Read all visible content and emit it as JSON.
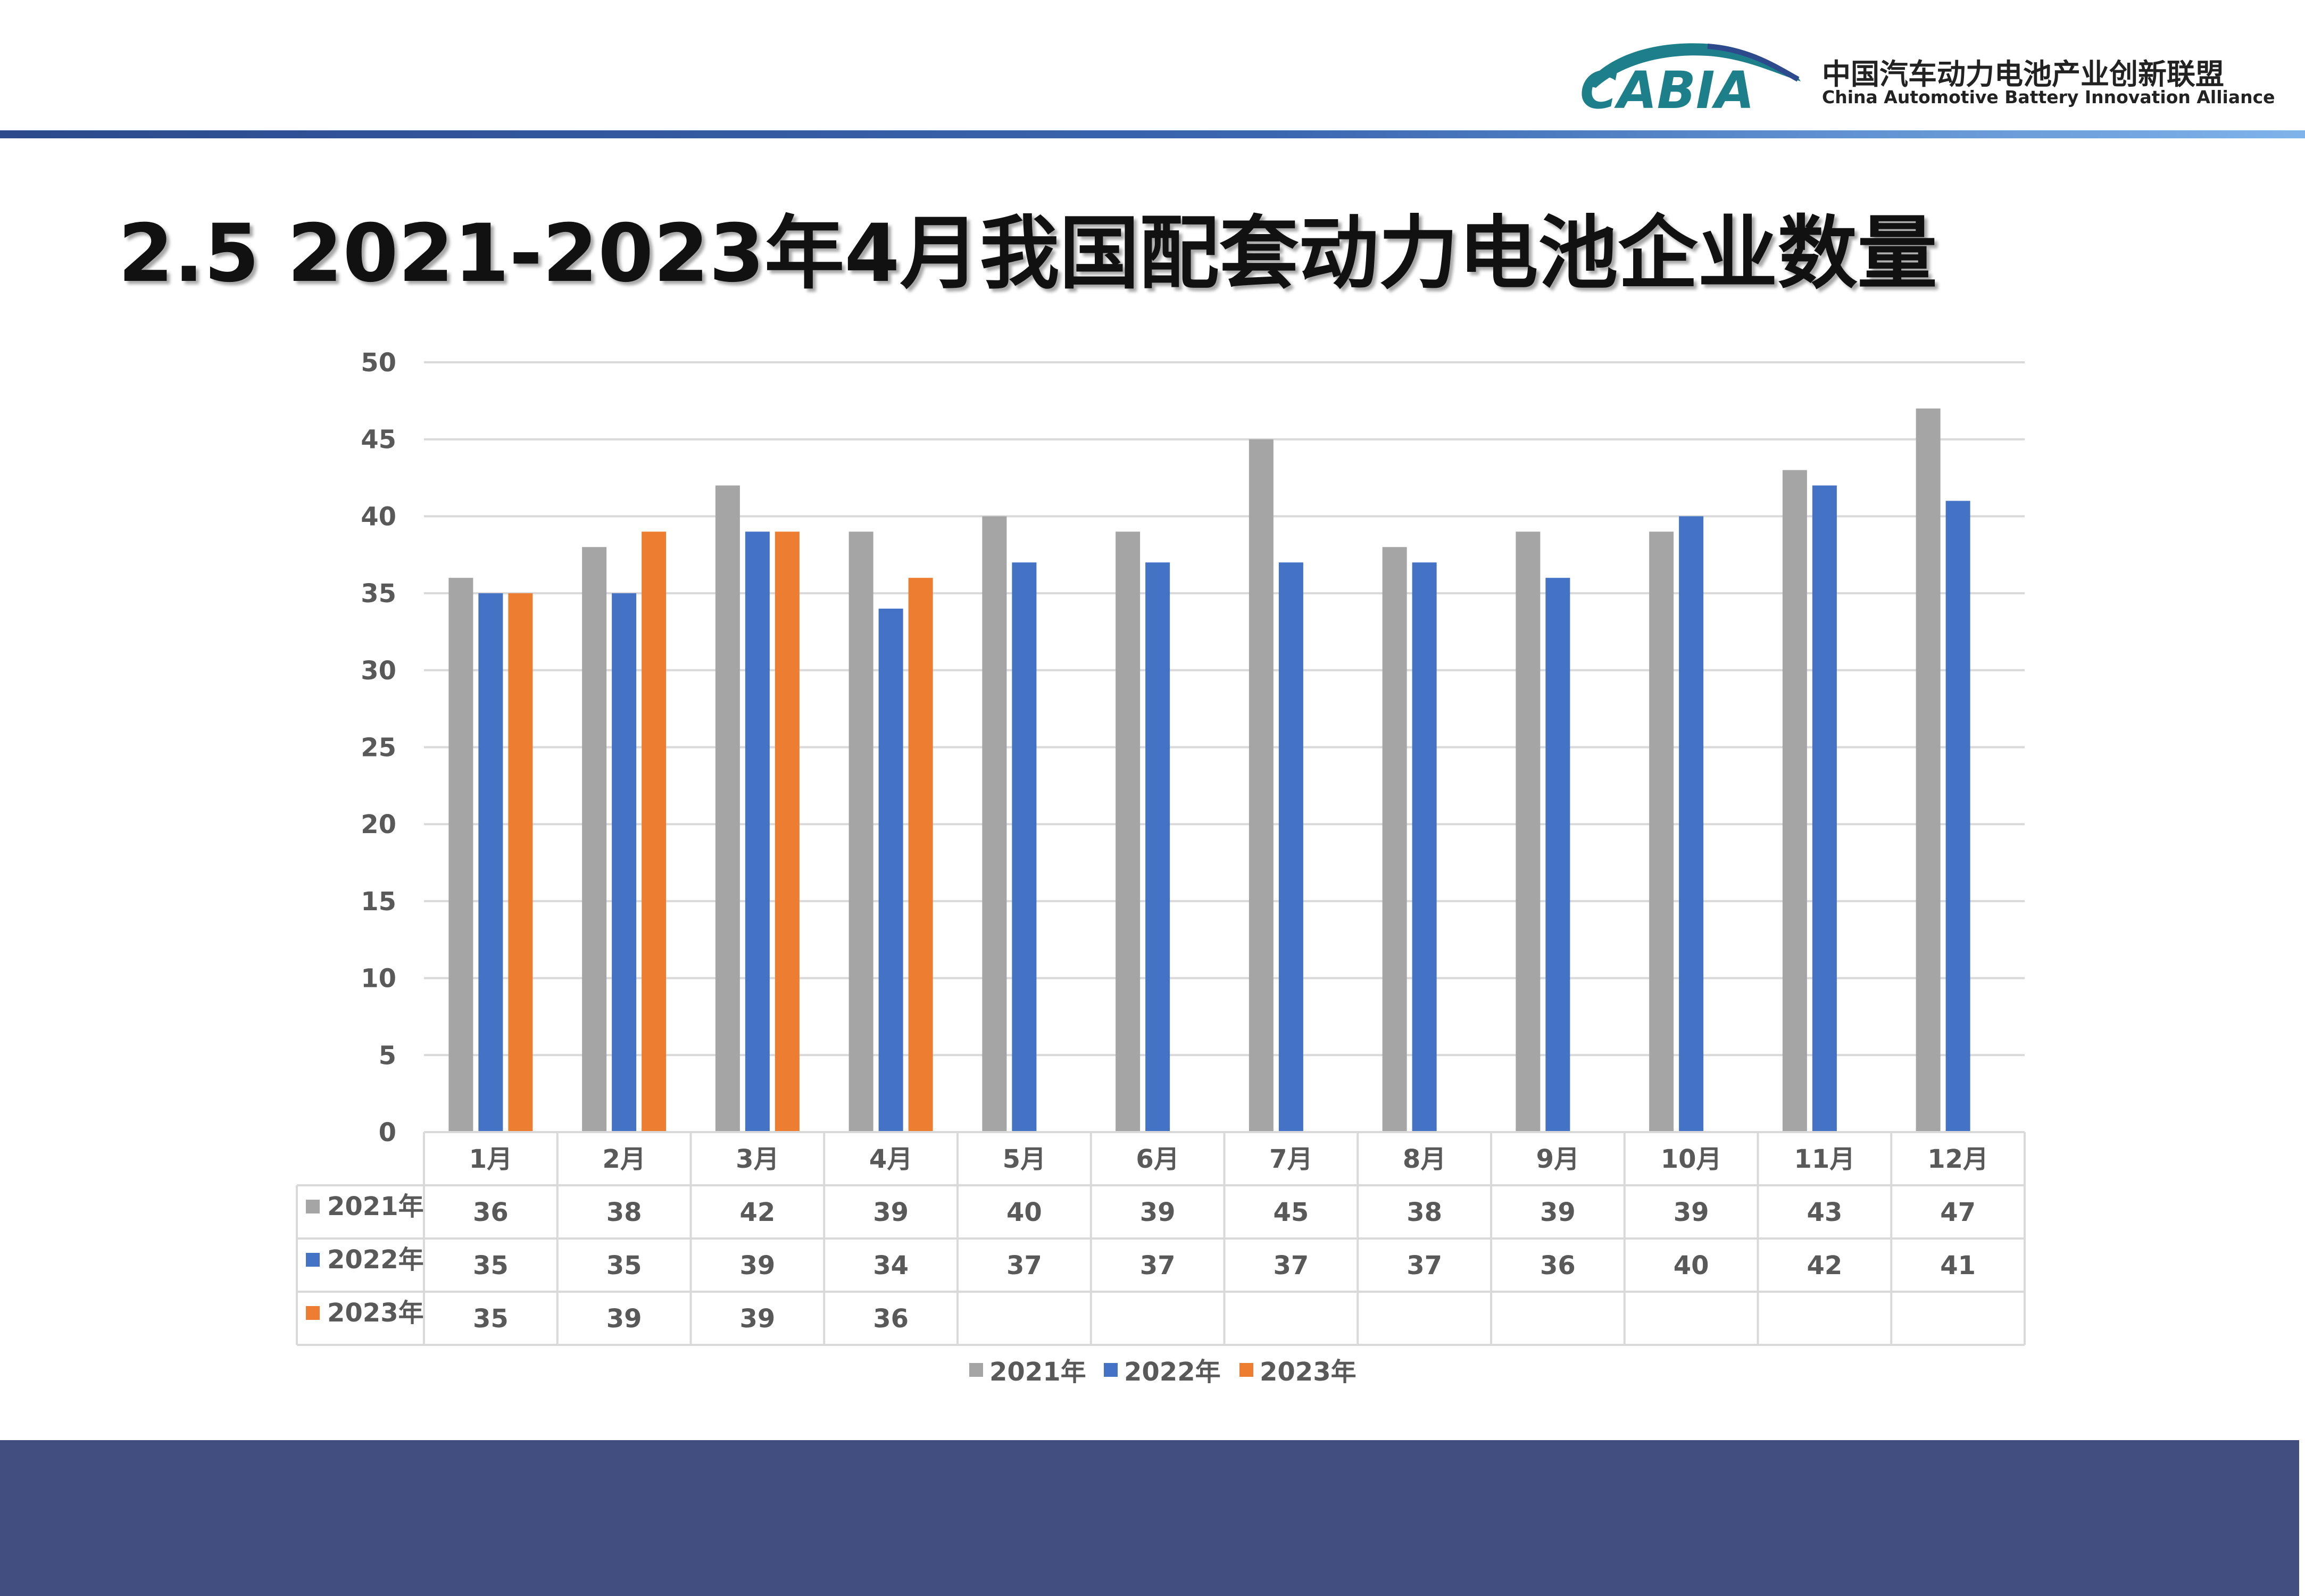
{
  "header": {
    "logo_mark": "CABIA",
    "org_name_cn": "中国汽车动力电池产业创新联盟",
    "org_name_en": "China Automotive Battery Innovation Alliance"
  },
  "page_title": "2.5 2021-2023年4月我国配套动力电池企业数量",
  "colors": {
    "accent_bar": "#2c4a8c",
    "footer": "#414e7f",
    "series_2021": "#a5a5a5",
    "series_2022": "#4472c4",
    "series_2023": "#ed7d31"
  },
  "chart_data": {
    "type": "bar",
    "categories": [
      "1月",
      "2月",
      "3月",
      "4月",
      "5月",
      "6月",
      "7月",
      "8月",
      "9月",
      "10月",
      "11月",
      "12月"
    ],
    "series": [
      {
        "name": "2021年",
        "color": "#a5a5a5",
        "values": [
          36,
          38,
          42,
          39,
          40,
          39,
          45,
          38,
          39,
          39,
          43,
          47
        ]
      },
      {
        "name": "2022年",
        "color": "#4472c4",
        "values": [
          35,
          35,
          39,
          34,
          37,
          37,
          37,
          37,
          36,
          40,
          42,
          41
        ]
      },
      {
        "name": "2023年",
        "color": "#ed7d31",
        "values": [
          35,
          39,
          39,
          36,
          null,
          null,
          null,
          null,
          null,
          null,
          null,
          null
        ]
      }
    ],
    "ylim": [
      0,
      50
    ],
    "yticks": [
      0,
      5,
      10,
      15,
      20,
      25,
      30,
      35,
      40,
      45,
      50
    ],
    "grid": true,
    "legend_position": "bottom",
    "data_table": true
  }
}
